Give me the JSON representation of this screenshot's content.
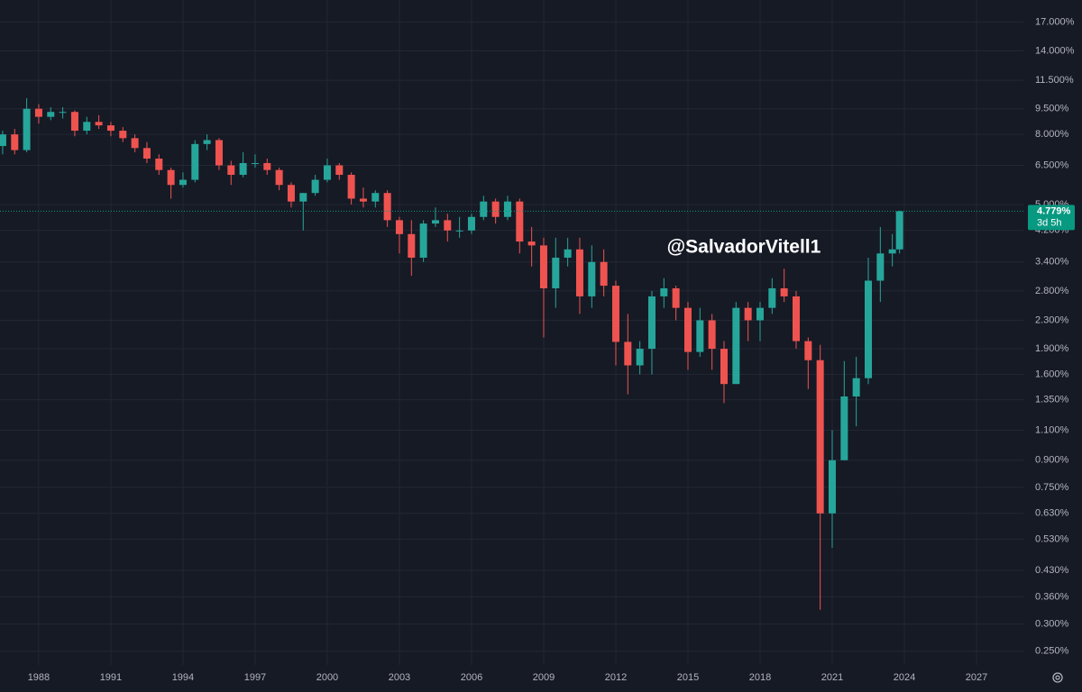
{
  "chart_data": {
    "type": "candlestick",
    "watermark": "@SalvadorVitell1",
    "log_scale": true,
    "grid": true,
    "up_color": "#26a69a",
    "down_color": "#ef5350",
    "xlim": [
      1986.39,
      2028.95
    ],
    "ylim": [
      0.228,
      19.7
    ],
    "xticks": [
      1988,
      1991,
      1994,
      1997,
      2000,
      2003,
      2006,
      2009,
      2012,
      2015,
      2018,
      2021,
      2024,
      2027
    ],
    "yticks": [
      {
        "value": 17,
        "label": "17.000%"
      },
      {
        "value": 14,
        "label": "14.000%"
      },
      {
        "value": 11.5,
        "label": "11.500%"
      },
      {
        "value": 9.5,
        "label": "9.500%"
      },
      {
        "value": 8,
        "label": "8.000%"
      },
      {
        "value": 6.5,
        "label": "6.500%"
      },
      {
        "value": 5,
        "label": "5.000%"
      },
      {
        "value": 4.2,
        "label": "4.200%"
      },
      {
        "value": 3.4,
        "label": "3.400%"
      },
      {
        "value": 2.8,
        "label": "2.800%"
      },
      {
        "value": 2.3,
        "label": "2.300%"
      },
      {
        "value": 1.9,
        "label": "1.900%"
      },
      {
        "value": 1.6,
        "label": "1.600%"
      },
      {
        "value": 1.35,
        "label": "1.350%"
      },
      {
        "value": 1.1,
        "label": "1.100%"
      },
      {
        "value": 0.9,
        "label": "0.900%"
      },
      {
        "value": 0.75,
        "label": "0.750%"
      },
      {
        "value": 0.63,
        "label": "0.630%"
      },
      {
        "value": 0.53,
        "label": "0.530%"
      },
      {
        "value": 0.43,
        "label": "0.430%"
      },
      {
        "value": 0.36,
        "label": "0.360%"
      },
      {
        "value": 0.3,
        "label": "0.300%"
      },
      {
        "value": 0.25,
        "label": "0.250%"
      }
    ],
    "last_price": {
      "value": 4.779,
      "label": "4.779%",
      "color": "#089981"
    },
    "countdown": "3d 5h",
    "x": [
      1986.5,
      1987,
      1987.5,
      1988,
      1988.5,
      1989,
      1989.5,
      1990,
      1990.5,
      1991,
      1991.5,
      1992,
      1992.5,
      1993,
      1993.5,
      1994,
      1994.5,
      1995,
      1995.5,
      1996,
      1996.5,
      1997,
      1997.5,
      1998,
      1998.5,
      1999,
      1999.5,
      2000,
      2000.5,
      2001,
      2001.5,
      2002,
      2002.5,
      2003,
      2003.5,
      2004,
      2004.5,
      2005,
      2005.5,
      2006,
      2006.5,
      2007,
      2007.5,
      2008,
      2008.5,
      2009,
      2009.5,
      2010,
      2010.5,
      2011,
      2011.5,
      2012,
      2012.5,
      2013,
      2013.5,
      2014,
      2014.5,
      2015,
      2015.5,
      2016,
      2016.5,
      2017,
      2017.5,
      2018,
      2018.5,
      2019,
      2019.5,
      2020,
      2020.5,
      2021,
      2021.5,
      2022,
      2022.5,
      2023,
      2023.5,
      2023.8
    ],
    "open": [
      7.4,
      8.0,
      7.2,
      9.5,
      9.0,
      9.3,
      9.3,
      8.2,
      8.7,
      8.5,
      8.2,
      7.8,
      7.3,
      6.8,
      6.3,
      5.7,
      5.9,
      7.5,
      7.7,
      6.5,
      6.1,
      6.6,
      6.6,
      6.3,
      5.7,
      5.1,
      5.4,
      5.9,
      6.5,
      6.1,
      5.2,
      5.1,
      5.4,
      4.5,
      4.1,
      3.5,
      4.4,
      4.5,
      4.2,
      4.2,
      4.6,
      5.1,
      4.6,
      5.1,
      3.9,
      3.8,
      2.85,
      3.5,
      3.7,
      2.7,
      3.4,
      2.9,
      1.99,
      1.7,
      1.9,
      2.7,
      2.85,
      2.5,
      1.86,
      2.3,
      1.9,
      1.5,
      2.5,
      2.3,
      2.5,
      2.85,
      2.7,
      2.0,
      1.76,
      0.63,
      0.9,
      1.38,
      1.56,
      3.0,
      3.6,
      3.7
    ],
    "high": [
      8.2,
      8.3,
      10.2,
      9.8,
      9.6,
      9.6,
      9.4,
      9.0,
      9.1,
      8.7,
      8.4,
      8.0,
      7.6,
      7.0,
      6.4,
      6.2,
      7.7,
      8.0,
      7.8,
      6.7,
      7.1,
      7.0,
      6.8,
      6.4,
      5.8,
      5.4,
      6.1,
      6.8,
      6.6,
      6.2,
      5.6,
      5.5,
      5.5,
      4.6,
      4.5,
      4.5,
      4.9,
      4.7,
      4.6,
      4.7,
      5.3,
      5.2,
      5.3,
      5.2,
      4.3,
      4.0,
      4.0,
      4.0,
      4.0,
      3.8,
      3.7,
      3.0,
      2.4,
      2.0,
      2.8,
      3.05,
      2.9,
      2.6,
      2.5,
      2.4,
      2.0,
      2.6,
      2.6,
      2.6,
      3.05,
      3.25,
      2.8,
      2.05,
      1.95,
      1.1,
      1.75,
      1.8,
      3.5,
      4.3,
      4.1,
      4.8
    ],
    "low": [
      7.0,
      7.0,
      7.1,
      8.6,
      8.8,
      8.9,
      7.9,
      8.0,
      8.3,
      7.9,
      7.6,
      7.1,
      6.6,
      6.1,
      5.2,
      5.6,
      5.8,
      7.2,
      6.3,
      5.7,
      6.0,
      6.4,
      6.1,
      5.5,
      4.9,
      4.2,
      5.3,
      5.8,
      5.9,
      5.0,
      4.9,
      4.9,
      4.3,
      3.6,
      3.1,
      3.4,
      4.3,
      3.9,
      4.0,
      4.1,
      4.5,
      4.4,
      4.5,
      3.6,
      3.3,
      2.05,
      2.5,
      3.3,
      2.4,
      2.5,
      2.7,
      1.7,
      1.4,
      1.6,
      1.6,
      2.5,
      2.3,
      1.65,
      1.8,
      1.65,
      1.32,
      1.5,
      2.0,
      2.0,
      2.4,
      2.6,
      1.9,
      1.45,
      0.33,
      0.5,
      0.9,
      1.13,
      1.5,
      2.6,
      3.3,
      3.6
    ],
    "close": [
      8.0,
      7.2,
      9.5,
      9.0,
      9.3,
      9.3,
      8.2,
      8.7,
      8.5,
      8.2,
      7.8,
      7.3,
      6.8,
      6.3,
      5.7,
      5.9,
      7.5,
      7.7,
      6.5,
      6.1,
      6.6,
      6.6,
      6.3,
      5.7,
      5.1,
      5.4,
      5.9,
      6.5,
      6.1,
      5.2,
      5.1,
      5.4,
      4.5,
      4.1,
      3.5,
      4.4,
      4.5,
      4.2,
      4.2,
      4.6,
      5.1,
      4.6,
      5.1,
      3.9,
      3.8,
      2.85,
      3.5,
      3.7,
      2.7,
      3.4,
      2.9,
      1.99,
      1.7,
      1.9,
      2.7,
      2.85,
      2.5,
      1.86,
      2.3,
      1.9,
      1.5,
      2.5,
      2.3,
      2.5,
      2.85,
      2.7,
      2.0,
      1.76,
      0.63,
      0.9,
      1.38,
      1.56,
      3.0,
      3.6,
      3.7,
      4.779
    ]
  }
}
